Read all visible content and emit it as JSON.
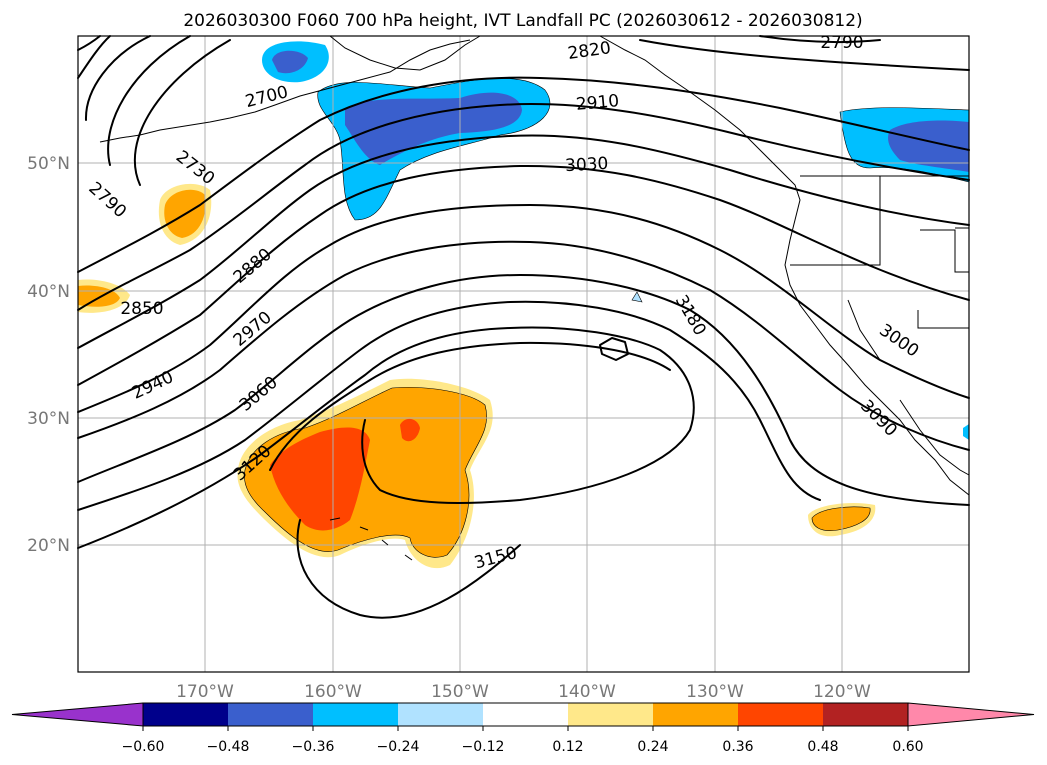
{
  "title": "2026030300 F060 700 hPa height, IVT Landfall PC (2026030612 - 2026030812)",
  "lat_labels": [
    "50°N",
    "40°N",
    "30°N",
    "20°N"
  ],
  "lon_labels": [
    "170°W",
    "160°W",
    "150°W",
    "140°W",
    "130°W",
    "120°W"
  ],
  "contour_labels": [
    "2790",
    "2820",
    "2700",
    "2910",
    "2730",
    "3030",
    "2790",
    "2880",
    "2850",
    "2970",
    "3180",
    "3000",
    "2940",
    "3060",
    "3090",
    "3120",
    "3150"
  ],
  "colorbar": {
    "ticks": [
      "−0.60",
      "−0.48",
      "−0.36",
      "−0.24",
      "−0.12",
      "0.12",
      "0.24",
      "0.36",
      "0.48",
      "0.60"
    ],
    "colors": [
      "#9932cc",
      "#00008b",
      "#3a5fcd",
      "#00bfff",
      "#b0e2ff",
      "#ffffff",
      "#ffe88a",
      "#ffa500",
      "#ff4500",
      "#b22222",
      "#ff88aa"
    ]
  }
}
